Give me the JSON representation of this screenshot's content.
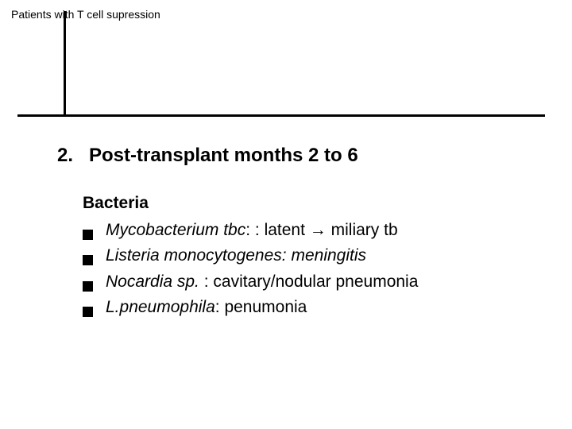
{
  "header": {
    "title": "Patients with T cell supression"
  },
  "section": {
    "number": "2.",
    "title": "Post-transplant months 2 to 6"
  },
  "subhead": "Bacteria",
  "items": [
    {
      "species": "Mycobacterium tbc",
      "sep": ": : ",
      "detail_pre": "latent ",
      "arrow": "→",
      "detail_post": " miliary tb"
    },
    {
      "species": "Listeria monocytogenes: meningitis",
      "sep": "",
      "detail_pre": "",
      "arrow": "",
      "detail_post": ""
    },
    {
      "species": "Nocardia sp.",
      "sep": " : ",
      "detail_pre": "cavitary/nodular pneumonia",
      "arrow": "",
      "detail_post": ""
    },
    {
      "species": "L.pneumophila",
      "sep": ": ",
      "detail_pre": "penumonia",
      "arrow": "",
      "detail_post": ""
    }
  ],
  "style": {
    "bg": "#ffffff",
    "text": "#000000",
    "rule": "#000000",
    "bullet": "#000000",
    "header_fontsize": 14,
    "section_fontsize": 24,
    "body_fontsize": 21
  }
}
